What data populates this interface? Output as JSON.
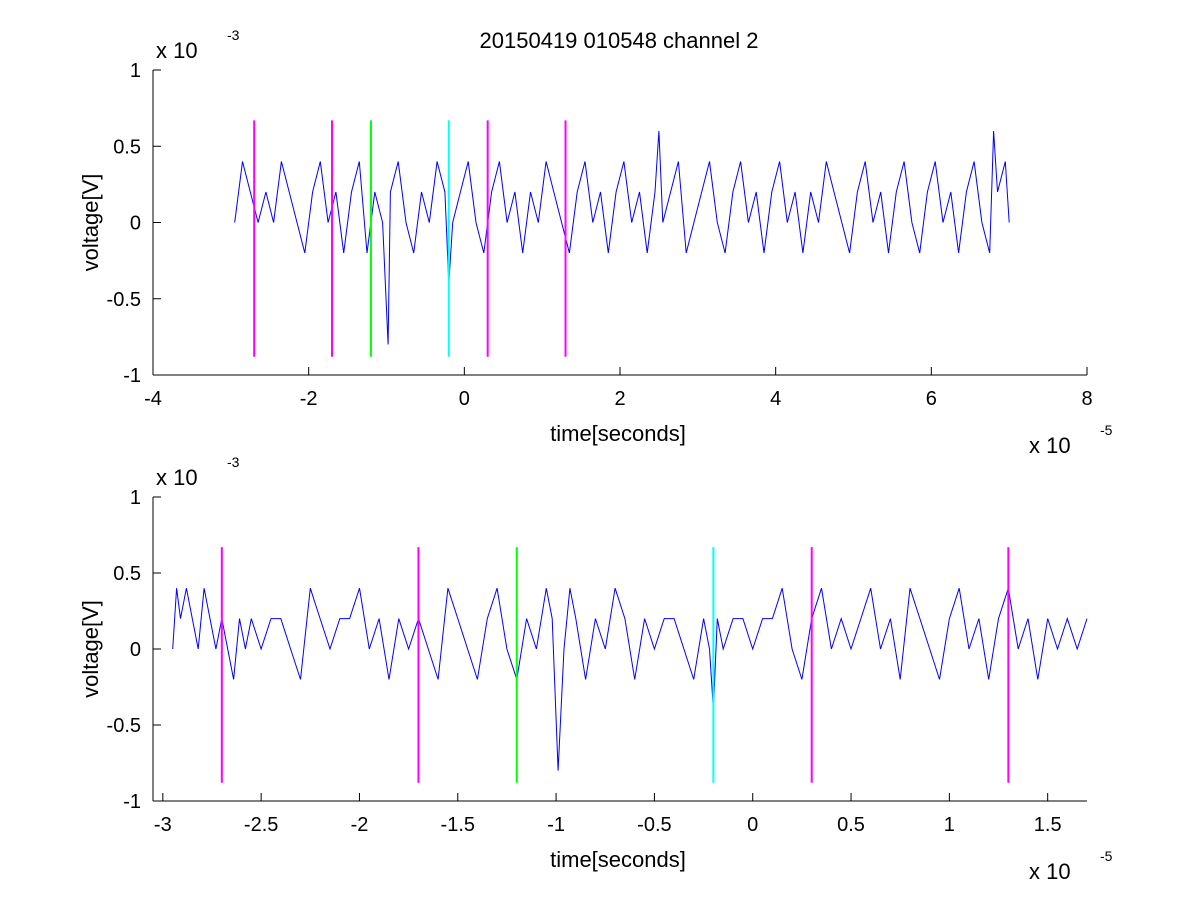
{
  "figure": {
    "title": "20150419 010548 channel 2"
  },
  "chart_data": [
    {
      "type": "line",
      "xlabel": "time[seconds]",
      "ylabel": "voltage[V]",
      "xlim": [
        -4,
        8
      ],
      "ylim": [
        -1,
        1
      ],
      "x_ticks": [
        -4,
        -2,
        0,
        2,
        4,
        6,
        8
      ],
      "x_tick_labels": [
        "-4",
        "-2",
        "0",
        "2",
        "4",
        "6",
        "8"
      ],
      "y_ticks": [
        1,
        0.5,
        0,
        -0.5,
        -1
      ],
      "y_tick_labels": [
        "1",
        "0.5",
        "0",
        "-0.5",
        "-1"
      ],
      "x_multiplier": {
        "base": "x 10",
        "exp": "-5"
      },
      "y_multiplier": {
        "base": "x 10",
        "exp": "-3"
      },
      "grid": false,
      "series": [
        {
          "color": "#0000ff",
          "x": [
            -2.95,
            -2.85,
            -2.75,
            -2.65,
            -2.55,
            -2.45,
            -2.35,
            -2.25,
            -2.15,
            -2.05,
            -1.95,
            -1.85,
            -1.75,
            -1.65,
            -1.55,
            -1.45,
            -1.35,
            -1.25,
            -1.15,
            -1.05,
            -0.98,
            -0.95,
            -0.85,
            -0.75,
            -0.65,
            -0.55,
            -0.45,
            -0.35,
            -0.25,
            -0.2,
            -0.15,
            -0.05,
            0.05,
            0.15,
            0.25,
            0.35,
            0.45,
            0.55,
            0.65,
            0.75,
            0.85,
            0.95,
            1.05,
            1.15,
            1.25,
            1.35,
            1.45,
            1.55,
            1.65,
            1.75,
            1.85,
            1.95,
            2.05,
            2.15,
            2.25,
            2.35,
            2.45,
            2.5,
            2.55,
            2.65,
            2.75,
            2.85,
            2.95,
            3.05,
            3.15,
            3.25,
            3.35,
            3.45,
            3.55,
            3.65,
            3.75,
            3.85,
            3.95,
            4.05,
            4.15,
            4.25,
            4.35,
            4.45,
            4.55,
            4.65,
            4.75,
            4.85,
            4.95,
            5.05,
            5.15,
            5.25,
            5.35,
            5.45,
            5.55,
            5.65,
            5.75,
            5.85,
            5.95,
            6.05,
            6.15,
            6.25,
            6.35,
            6.45,
            6.55,
            6.65,
            6.75,
            6.8,
            6.85,
            6.95,
            7.0
          ],
          "y": [
            0.0,
            0.4,
            0.2,
            0.0,
            0.2,
            0.0,
            0.4,
            0.2,
            0.0,
            -0.2,
            0.2,
            0.4,
            0.0,
            0.2,
            -0.2,
            0.2,
            0.4,
            -0.2,
            0.2,
            0.0,
            -0.8,
            0.2,
            0.4,
            0.0,
            -0.2,
            0.2,
            0.0,
            0.4,
            0.2,
            -0.4,
            0.0,
            0.2,
            0.4,
            0.0,
            -0.2,
            0.2,
            0.4,
            0.0,
            0.2,
            -0.2,
            0.2,
            0.0,
            0.4,
            0.2,
            0.0,
            -0.2,
            0.2,
            0.4,
            0.0,
            0.2,
            -0.2,
            0.2,
            0.4,
            0.0,
            0.2,
            -0.2,
            0.2,
            0.6,
            0.0,
            0.2,
            0.4,
            -0.2,
            0.0,
            0.2,
            0.4,
            0.0,
            -0.2,
            0.2,
            0.4,
            0.0,
            0.2,
            -0.2,
            0.2,
            0.4,
            0.0,
            0.2,
            -0.2,
            0.2,
            0.0,
            0.4,
            0.2,
            0.0,
            -0.2,
            0.2,
            0.4,
            0.0,
            0.2,
            -0.2,
            0.2,
            0.4,
            0.0,
            -0.2,
            0.2,
            0.4,
            0.0,
            0.2,
            -0.2,
            0.2,
            0.4,
            0.0,
            -0.2,
            0.6,
            0.2,
            0.4,
            0.0
          ]
        }
      ],
      "markers": [
        {
          "x": -2.7,
          "color": "#ff00ff",
          "y_bottom": -0.88,
          "y_top": 0.67
        },
        {
          "x": -1.7,
          "color": "#ff00ff",
          "y_bottom": -0.88,
          "y_top": 0.67
        },
        {
          "x": -1.2,
          "color": "#00ff00",
          "y_bottom": -0.88,
          "y_top": 0.67
        },
        {
          "x": -0.2,
          "color": "#00ffff",
          "y_bottom": -0.88,
          "y_top": 0.67
        },
        {
          "x": 0.3,
          "color": "#ff00ff",
          "y_bottom": -0.88,
          "y_top": 0.67
        },
        {
          "x": 1.3,
          "color": "#ff00ff",
          "y_bottom": -0.88,
          "y_top": 0.67
        }
      ]
    },
    {
      "type": "line",
      "xlabel": "time[seconds]",
      "ylabel": "voltage[V]",
      "xlim": [
        -3.05,
        1.7
      ],
      "ylim": [
        -1,
        1
      ],
      "x_ticks": [
        -3,
        -2.5,
        -2,
        -1.5,
        -1,
        -0.5,
        0,
        0.5,
        1,
        1.5
      ],
      "x_tick_labels": [
        "-3",
        "-2.5",
        "-2",
        "-1.5",
        "-1",
        "-0.5",
        "0",
        "0.5",
        "1",
        "1.5"
      ],
      "y_ticks": [
        1,
        0.5,
        0,
        -0.5,
        -1
      ],
      "y_tick_labels": [
        "1",
        "0.5",
        "0",
        "-0.5",
        "-1"
      ],
      "x_multiplier": {
        "base": "x 10",
        "exp": "-5"
      },
      "y_multiplier": {
        "base": "x 10",
        "exp": "-3"
      },
      "grid": false,
      "series": [
        {
          "color": "#0000ff",
          "x": [
            -2.95,
            -2.93,
            -2.91,
            -2.88,
            -2.85,
            -2.82,
            -2.79,
            -2.76,
            -2.73,
            -2.7,
            -2.67,
            -2.64,
            -2.61,
            -2.58,
            -2.55,
            -2.5,
            -2.45,
            -2.4,
            -2.35,
            -2.3,
            -2.25,
            -2.2,
            -2.15,
            -2.1,
            -2.05,
            -2.0,
            -1.95,
            -1.9,
            -1.85,
            -1.8,
            -1.75,
            -1.7,
            -1.65,
            -1.6,
            -1.55,
            -1.5,
            -1.45,
            -1.4,
            -1.35,
            -1.3,
            -1.25,
            -1.2,
            -1.15,
            -1.1,
            -1.05,
            -1.02,
            -0.99,
            -0.96,
            -0.93,
            -0.9,
            -0.85,
            -0.8,
            -0.75,
            -0.7,
            -0.65,
            -0.6,
            -0.55,
            -0.5,
            -0.45,
            -0.4,
            -0.35,
            -0.3,
            -0.25,
            -0.22,
            -0.2,
            -0.18,
            -0.15,
            -0.1,
            -0.05,
            0.0,
            0.05,
            0.1,
            0.15,
            0.2,
            0.25,
            0.3,
            0.35,
            0.4,
            0.45,
            0.5,
            0.55,
            0.6,
            0.65,
            0.7,
            0.75,
            0.8,
            0.85,
            0.9,
            0.95,
            1.0,
            1.05,
            1.1,
            1.15,
            1.2,
            1.25,
            1.3,
            1.35,
            1.4,
            1.45,
            1.5,
            1.55,
            1.6,
            1.65,
            1.7
          ],
          "y": [
            0.0,
            0.4,
            0.2,
            0.4,
            0.2,
            0.0,
            0.4,
            0.2,
            0.0,
            0.2,
            0.0,
            -0.2,
            0.2,
            0.0,
            0.2,
            0.0,
            0.2,
            0.2,
            0.0,
            -0.2,
            0.4,
            0.2,
            0.0,
            0.2,
            0.2,
            0.4,
            0.0,
            0.2,
            -0.2,
            0.2,
            0.0,
            0.2,
            0.0,
            -0.2,
            0.4,
            0.2,
            0.0,
            -0.2,
            0.2,
            0.4,
            0.0,
            -0.2,
            0.2,
            0.0,
            0.4,
            0.2,
            -0.8,
            0.0,
            0.4,
            0.2,
            -0.2,
            0.2,
            0.0,
            0.4,
            0.2,
            -0.2,
            0.2,
            0.0,
            0.2,
            0.2,
            0.0,
            -0.2,
            0.2,
            0.0,
            -0.4,
            0.2,
            0.0,
            0.2,
            0.2,
            0.0,
            0.2,
            0.2,
            0.4,
            0.0,
            -0.2,
            0.2,
            0.4,
            0.0,
            0.2,
            0.0,
            0.2,
            0.4,
            0.0,
            0.2,
            -0.2,
            0.4,
            0.2,
            0.0,
            -0.2,
            0.2,
            0.4,
            0.0,
            0.2,
            -0.2,
            0.2,
            0.4,
            0.0,
            0.2,
            -0.2,
            0.2,
            0.0,
            0.2,
            0.0,
            0.2
          ]
        }
      ],
      "markers": [
        {
          "x": -2.7,
          "color": "#ff00ff",
          "y_bottom": -0.88,
          "y_top": 0.67
        },
        {
          "x": -1.7,
          "color": "#ff00ff",
          "y_bottom": -0.88,
          "y_top": 0.67
        },
        {
          "x": -1.2,
          "color": "#00ff00",
          "y_bottom": -0.88,
          "y_top": 0.67
        },
        {
          "x": -0.2,
          "color": "#00ffff",
          "y_bottom": -0.88,
          "y_top": 0.67
        },
        {
          "x": 0.3,
          "color": "#ff00ff",
          "y_bottom": -0.88,
          "y_top": 0.67
        },
        {
          "x": 1.3,
          "color": "#ff00ff",
          "y_bottom": -0.88,
          "y_top": 0.67
        }
      ]
    }
  ]
}
